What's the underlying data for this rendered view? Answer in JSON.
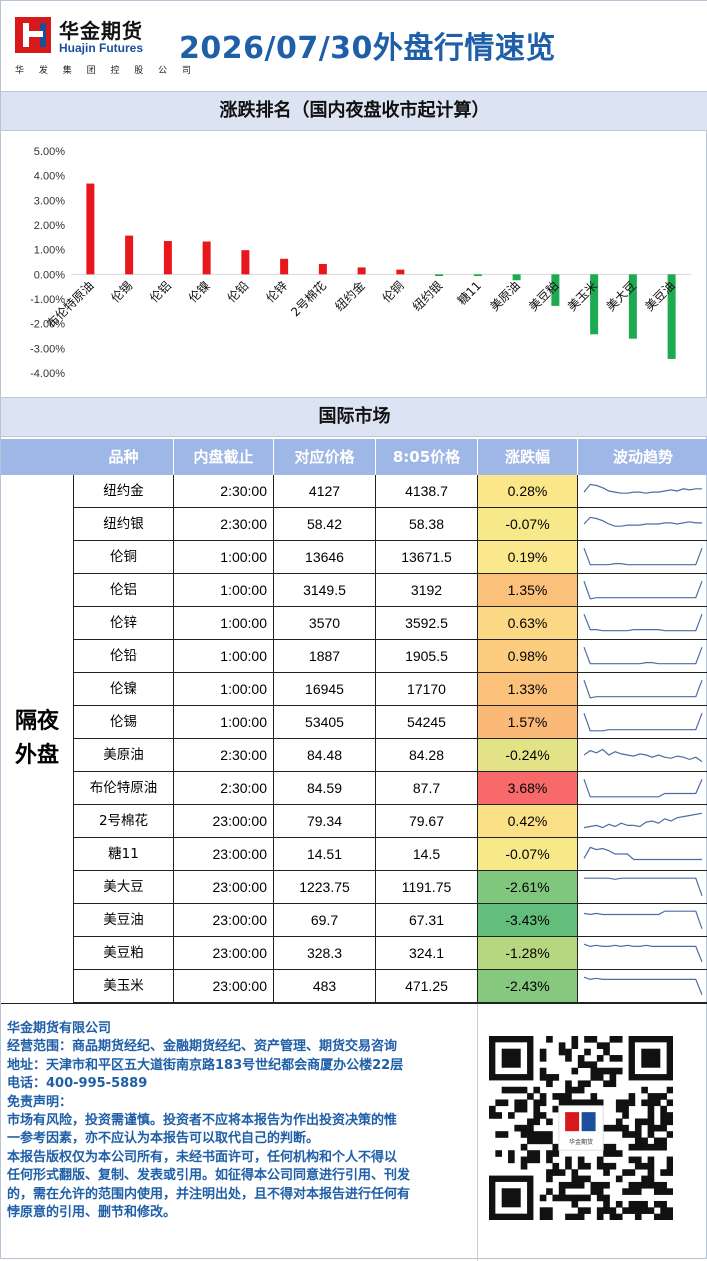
{
  "header": {
    "logo_cn": "华金期货",
    "logo_en": "Huajin Futures",
    "logo_sub": "华 发 集 团 控 股 公 司",
    "title": "2026/07/30外盘行情速览"
  },
  "sections": {
    "ranking_title": "涨跌排名（国内夜盘收市起计算）",
    "intl_title": "国际市场"
  },
  "chart_data": {
    "type": "bar",
    "categories": [
      "布伦特原油",
      "伦锡",
      "伦铝",
      "伦镍",
      "伦铅",
      "伦锌",
      "2号棉花",
      "纽约金",
      "伦铜",
      "纽约银",
      "糖11",
      "美原油",
      "美豆粕",
      "美玉米",
      "美大豆",
      "美豆油"
    ],
    "values": [
      3.68,
      1.57,
      1.35,
      1.33,
      0.98,
      0.63,
      0.42,
      0.28,
      0.19,
      -0.07,
      -0.07,
      -0.24,
      -1.28,
      -2.43,
      -2.61,
      -3.43
    ],
    "ylim": [
      -4,
      5
    ],
    "yticks": [
      "5.00%",
      "4.00%",
      "3.00%",
      "2.00%",
      "1.00%",
      "0.00%",
      "-1.00%",
      "-2.00%",
      "-3.00%",
      "-4.00%"
    ],
    "colors": {
      "up": "#e8171c",
      "down": "#1eaa50"
    }
  },
  "table": {
    "headers": [
      "品种",
      "内盘截止",
      "对应价格",
      "8:05价格",
      "涨跌幅",
      "波动趋势"
    ],
    "group_label_line1": "隔夜",
    "group_label_line2": "外盘",
    "rows": [
      {
        "name": "纽约金",
        "time": "2:30:00",
        "price": "4127",
        "now": "4138.7",
        "chg": "0.28%",
        "color": "#fbe689",
        "spark": [
          0.55,
          0.2,
          0.25,
          0.35,
          0.5,
          0.55,
          0.6,
          0.6,
          0.55,
          0.55,
          0.6,
          0.55,
          0.55,
          0.5,
          0.45,
          0.5,
          0.4,
          0.45,
          0.4,
          0.4
        ]
      },
      {
        "name": "纽约银",
        "time": "2:30:00",
        "price": "58.42",
        "now": "58.38",
        "chg": "-0.07%",
        "color": "#f7e98a",
        "spark": [
          0.5,
          0.2,
          0.25,
          0.35,
          0.5,
          0.6,
          0.6,
          0.55,
          0.55,
          0.55,
          0.5,
          0.5,
          0.5,
          0.45,
          0.45,
          0.5,
          0.45,
          0.4,
          0.45,
          0.45
        ]
      },
      {
        "name": "伦铜",
        "time": "1:00:00",
        "price": "13646",
        "now": "13671.5",
        "chg": "0.19%",
        "color": "#fbe78c",
        "spark": [
          0.1,
          0.85,
          0.85,
          0.85,
          0.85,
          0.8,
          0.8,
          0.85,
          0.85,
          0.85,
          0.85,
          0.85,
          0.85,
          0.85,
          0.85,
          0.85,
          0.85,
          0.85,
          0.85,
          0.1
        ]
      },
      {
        "name": "伦铝",
        "time": "1:00:00",
        "price": "3149.5",
        "now": "3192",
        "chg": "1.35%",
        "color": "#fbc07a",
        "spark": [
          0.1,
          0.9,
          0.85,
          0.85,
          0.85,
          0.85,
          0.85,
          0.85,
          0.85,
          0.85,
          0.85,
          0.85,
          0.85,
          0.85,
          0.85,
          0.85,
          0.85,
          0.85,
          0.85,
          0.1
        ]
      },
      {
        "name": "伦锌",
        "time": "1:00:00",
        "price": "3570",
        "now": "3592.5",
        "chg": "0.63%",
        "color": "#fbd883",
        "spark": [
          0.1,
          0.8,
          0.8,
          0.85,
          0.85,
          0.85,
          0.85,
          0.85,
          0.8,
          0.8,
          0.8,
          0.8,
          0.8,
          0.85,
          0.85,
          0.85,
          0.85,
          0.85,
          0.85,
          0.1
        ]
      },
      {
        "name": "伦铅",
        "time": "1:00:00",
        "price": "1887",
        "now": "1905.5",
        "chg": "0.98%",
        "color": "#fbcb7e",
        "spark": [
          0.1,
          0.85,
          0.85,
          0.85,
          0.85,
          0.85,
          0.85,
          0.85,
          0.85,
          0.85,
          0.8,
          0.8,
          0.85,
          0.85,
          0.85,
          0.85,
          0.85,
          0.85,
          0.85,
          0.1
        ]
      },
      {
        "name": "伦镍",
        "time": "1:00:00",
        "price": "16945",
        "now": "17170",
        "chg": "1.33%",
        "color": "#fbc17a",
        "spark": [
          0.1,
          0.9,
          0.85,
          0.85,
          0.85,
          0.85,
          0.85,
          0.85,
          0.85,
          0.85,
          0.85,
          0.85,
          0.85,
          0.85,
          0.85,
          0.85,
          0.85,
          0.85,
          0.85,
          0.1
        ]
      },
      {
        "name": "伦锡",
        "time": "1:00:00",
        "price": "53405",
        "now": "54245",
        "chg": "1.57%",
        "color": "#fab977",
        "spark": [
          0.1,
          0.9,
          0.9,
          0.9,
          0.85,
          0.85,
          0.85,
          0.85,
          0.85,
          0.85,
          0.85,
          0.85,
          0.85,
          0.85,
          0.85,
          0.85,
          0.85,
          0.85,
          0.85,
          0.1
        ]
      },
      {
        "name": "美原油",
        "time": "2:30:00",
        "price": "84.48",
        "now": "84.28",
        "chg": "-0.24%",
        "color": "#e4e286",
        "spark": [
          0.5,
          0.3,
          0.4,
          0.25,
          0.5,
          0.35,
          0.45,
          0.5,
          0.55,
          0.45,
          0.5,
          0.6,
          0.5,
          0.6,
          0.65,
          0.55,
          0.6,
          0.7,
          0.6,
          0.8
        ]
      },
      {
        "name": "布伦特原油",
        "time": "2:30:00",
        "price": "84.59",
        "now": "87.7",
        "chg": "3.68%",
        "color": "#f8696b",
        "spark": [
          0.1,
          0.9,
          0.9,
          0.9,
          0.9,
          0.9,
          0.9,
          0.9,
          0.9,
          0.9,
          0.9,
          0.9,
          0.9,
          0.75,
          0.75,
          0.75,
          0.75,
          0.75,
          0.75,
          0.1
        ]
      },
      {
        "name": "2号棉花",
        "time": "23:00:00",
        "price": "79.34",
        "now": "79.67",
        "chg": "0.42%",
        "color": "#fbe088",
        "spark": [
          0.8,
          0.75,
          0.7,
          0.8,
          0.65,
          0.75,
          0.6,
          0.7,
          0.7,
          0.75,
          0.55,
          0.5,
          0.6,
          0.4,
          0.5,
          0.35,
          0.3,
          0.25,
          0.2,
          0.15
        ]
      },
      {
        "name": "糖11",
        "time": "23:00:00",
        "price": "14.51",
        "now": "14.5",
        "chg": "-0.07%",
        "color": "#f7e98a",
        "spark": [
          0.7,
          0.2,
          0.3,
          0.25,
          0.35,
          0.5,
          0.5,
          0.5,
          0.75,
          0.75,
          0.75,
          0.75,
          0.75,
          0.75,
          0.75,
          0.75,
          0.75,
          0.75,
          0.75,
          0.75
        ]
      },
      {
        "name": "美大豆",
        "time": "23:00:00",
        "price": "1223.75",
        "now": "1191.75",
        "chg": "-2.61%",
        "color": "#80c67c",
        "spark": [
          0.1,
          0.1,
          0.1,
          0.1,
          0.1,
          0.15,
          0.1,
          0.1,
          0.1,
          0.1,
          0.1,
          0.1,
          0.1,
          0.1,
          0.1,
          0.1,
          0.1,
          0.1,
          0.1,
          0.9
        ]
      },
      {
        "name": "美豆油",
        "time": "23:00:00",
        "price": "69.7",
        "now": "67.31",
        "chg": "-3.43%",
        "color": "#63be7b",
        "spark": [
          0.2,
          0.25,
          0.2,
          0.25,
          0.25,
          0.25,
          0.25,
          0.25,
          0.25,
          0.25,
          0.25,
          0.25,
          0.25,
          0.1,
          0.1,
          0.1,
          0.1,
          0.1,
          0.1,
          0.9
        ]
      },
      {
        "name": "美豆粕",
        "time": "23:00:00",
        "price": "328.3",
        "now": "324.1",
        "chg": "-1.28%",
        "color": "#b6d680",
        "spark": [
          0.1,
          0.2,
          0.15,
          0.2,
          0.2,
          0.15,
          0.2,
          0.15,
          0.2,
          0.2,
          0.15,
          0.2,
          0.2,
          0.2,
          0.2,
          0.2,
          0.2,
          0.2,
          0.2,
          0.9
        ]
      },
      {
        "name": "美玉米",
        "time": "23:00:00",
        "price": "483",
        "now": "471.25",
        "chg": "-2.43%",
        "color": "#86c87d",
        "spark": [
          0.1,
          0.2,
          0.15,
          0.2,
          0.2,
          0.2,
          0.2,
          0.2,
          0.2,
          0.2,
          0.2,
          0.2,
          0.2,
          0.2,
          0.2,
          0.2,
          0.2,
          0.2,
          0.2,
          0.9
        ]
      }
    ]
  },
  "footer": {
    "company": "华金期货有限公司",
    "scope": "  经营范围：商品期货经纪、金融期货经纪、资产管理、期货交易咨询",
    "address": "   地址：天津市和平区五大道街南京路183号世纪都会商厦办公楼22层",
    "phone": "   电话：400-995-5889",
    "disclaimer_title": " 免责声明：",
    "d1": "   市场有风险，投资需谨慎。投资者不应将本报告为作出投资决策的惟",
    "d2": "一参考因素，亦不应认为本报告可以取代自己的判断。",
    "d3": "   本报告版权仅为本公司所有，未经书面许可，任何机构和个人不得以",
    "d4": "任何形式翻版、复制、发表或引用。如征得本公司同意进行引用、刊发",
    "d5": "的，需在允许的范围内使用，并注明出处，且不得对本报告进行任何有",
    "d6": "悖原意的引用、删节和修改。",
    "qr_logo": "华金期货"
  }
}
